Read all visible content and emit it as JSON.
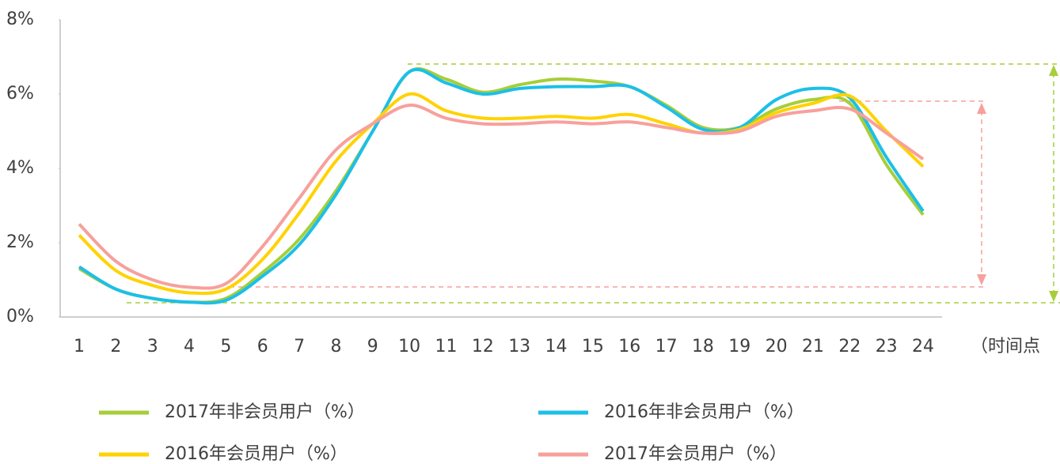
{
  "chart_data": {
    "type": "line",
    "x_label": "（时间点",
    "categories": [
      "1",
      "2",
      "3",
      "4",
      "5",
      "6",
      "7",
      "8",
      "9",
      "10",
      "11",
      "12",
      "13",
      "14",
      "15",
      "16",
      "17",
      "18",
      "19",
      "20",
      "21",
      "22",
      "23",
      "24"
    ],
    "ylim": [
      0,
      8
    ],
    "yticks": [
      {
        "value": 0,
        "label": "0%"
      },
      {
        "value": 2,
        "label": "2%"
      },
      {
        "value": 4,
        "label": "4%"
      },
      {
        "value": 6,
        "label": "6%"
      },
      {
        "value": 8,
        "label": "8%"
      }
    ],
    "grid": false,
    "series": [
      {
        "name": "2017年非会员用户（%）",
        "color": "#a6ce39",
        "values": [
          1.3,
          0.75,
          0.5,
          0.4,
          0.5,
          1.2,
          2.1,
          3.4,
          5.0,
          6.6,
          6.4,
          6.05,
          6.25,
          6.4,
          6.35,
          6.2,
          5.7,
          5.1,
          5.1,
          5.6,
          5.85,
          5.75,
          4.1,
          2.75
        ]
      },
      {
        "name": "2016年非会员用户（%）",
        "color": "#1cbfe8",
        "values": [
          1.35,
          0.75,
          0.5,
          0.4,
          0.45,
          1.1,
          1.95,
          3.3,
          5.0,
          6.6,
          6.3,
          6.0,
          6.15,
          6.2,
          6.2,
          6.2,
          5.65,
          5.05,
          5.1,
          5.85,
          6.15,
          5.9,
          4.3,
          2.85
        ]
      },
      {
        "name": "2016年会员用户（%）",
        "color": "#ffd200",
        "values": [
          2.2,
          1.25,
          0.85,
          0.65,
          0.75,
          1.55,
          2.8,
          4.2,
          5.2,
          6.0,
          5.55,
          5.35,
          5.35,
          5.4,
          5.35,
          5.45,
          5.2,
          4.95,
          5.05,
          5.5,
          5.75,
          5.95,
          5.0,
          4.05
        ]
      },
      {
        "name": "2017年会员用户（%）",
        "color": "#f7a09c",
        "values": [
          2.5,
          1.5,
          1.0,
          0.8,
          0.9,
          1.9,
          3.2,
          4.5,
          5.2,
          5.7,
          5.35,
          5.2,
          5.2,
          5.25,
          5.2,
          5.25,
          5.1,
          4.95,
          5.0,
          5.4,
          5.55,
          5.6,
          4.95,
          4.25
        ]
      }
    ]
  }
}
